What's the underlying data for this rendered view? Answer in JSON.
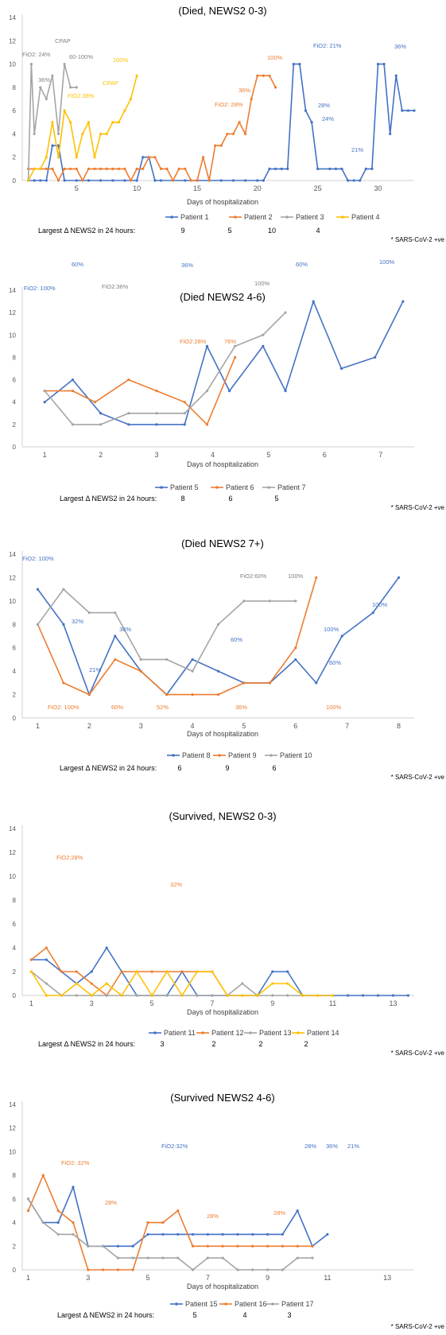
{
  "footnote": "* SARS-CoV-2 +ve",
  "delta_label": "Largest Δ NEWS2 in 24 hours:",
  "chart_data": [
    {
      "type": "line",
      "title": "(Died, NEWS2 0-3)",
      "xlabel": "Days of hospitalization",
      "xlim": [
        0.5,
        33
      ],
      "ylim": [
        0,
        14
      ],
      "yticks": [
        0,
        2,
        4,
        6,
        8,
        10,
        12,
        14
      ],
      "xticks": [
        5,
        10,
        15,
        20,
        25,
        30
      ],
      "grid": false,
      "legend_position": "bottom",
      "series": [
        {
          "name": "Patient 1",
          "color": "#4472C4",
          "delta": "9",
          "x": [
            1,
            1.5,
            2,
            2.5,
            3,
            3.5,
            4,
            5,
            6,
            7,
            8,
            9,
            10,
            10.5,
            11,
            11.5,
            12,
            13,
            14,
            15,
            16,
            17,
            18,
            19,
            20,
            20.5,
            21,
            21.5,
            22,
            22.5,
            23,
            23.5,
            24,
            24.5,
            25,
            26,
            26.5,
            27,
            27.5,
            28,
            28.5,
            29,
            29.5,
            30,
            30.5,
            31,
            31.5,
            32,
            32.5,
            33
          ],
          "y": [
            0,
            0,
            0,
            0,
            3,
            3,
            0,
            0,
            0,
            0,
            0,
            0,
            0,
            2,
            2,
            0,
            0,
            0,
            0,
            0,
            0,
            0,
            0,
            0,
            0,
            0,
            1,
            1,
            1,
            1,
            10,
            10,
            6,
            5,
            1,
            1,
            1,
            1,
            0,
            0,
            0,
            1,
            1,
            10,
            10,
            4,
            9,
            6,
            6,
            6
          ]
        },
        {
          "name": "Patient 2",
          "color": "#ED7D31",
          "delta": "5",
          "x": [
            1,
            1.5,
            2,
            2.5,
            3,
            3.5,
            4,
            4.5,
            5,
            5.5,
            6,
            6.5,
            7,
            7.5,
            8,
            8.5,
            9,
            9.5,
            10,
            10.5,
            11,
            11.5,
            12,
            12.5,
            13,
            13.5,
            14,
            14.5,
            15,
            15.5,
            16,
            16.5,
            17,
            17.5,
            18,
            18.5,
            19,
            19.5,
            20,
            20.5,
            21,
            21.5
          ],
          "y": [
            1,
            1,
            1,
            1,
            1,
            0,
            1,
            1,
            1,
            0,
            1,
            1,
            1,
            1,
            1,
            1,
            1,
            0,
            1,
            1,
            2,
            2,
            1,
            1,
            0,
            1,
            1,
            0,
            0,
            2,
            0,
            3,
            3,
            4,
            4,
            5,
            4,
            7,
            9,
            9,
            9,
            8
          ]
        },
        {
          "name": "Patient 3",
          "color": "#A5A5A5",
          "delta": "10",
          "x": [
            1,
            1.25,
            1.5,
            2,
            2.5,
            3,
            3.5,
            4,
            4.5,
            5
          ],
          "y": [
            0,
            10,
            4,
            8,
            7,
            9,
            4,
            10,
            8,
            8
          ]
        },
        {
          "name": "Patient 4",
          "color": "#FFC000",
          "delta": "4",
          "x": [
            1,
            1.5,
            2,
            2.5,
            3,
            3.5,
            4,
            4.5,
            5,
            5.5,
            6,
            6.5,
            7,
            7.5,
            8,
            8.5,
            9,
            9.5,
            10
          ],
          "y": [
            0,
            1,
            1,
            2,
            5,
            2,
            6,
            5,
            2,
            4,
            5,
            2,
            4,
            4,
            5,
            5,
            6,
            7,
            9
          ]
        }
      ],
      "annotations": [
        {
          "text": "FiO2: 24%",
          "color": "#808080"
        },
        {
          "text": "36%",
          "color": "#808080"
        },
        {
          "text": "CPAP",
          "color": "#808080"
        },
        {
          "text": "60-100%",
          "color": "#808080"
        },
        {
          "text": "100%",
          "color": "#FFC000"
        },
        {
          "text": "CPAP",
          "color": "#FFC000"
        },
        {
          "text": "FiO2:36%",
          "color": "#FFC000"
        },
        {
          "text": "100%",
          "color": "#ED7D31"
        },
        {
          "text": "36%",
          "color": "#ED7D31"
        },
        {
          "text": "FiO2: 28%",
          "color": "#ED7D31"
        },
        {
          "text": "FiO2: 21%",
          "color": "#4472C4"
        },
        {
          "text": "28%",
          "color": "#4472C4"
        },
        {
          "text": "24%",
          "color": "#4472C4"
        },
        {
          "text": "21%",
          "color": "#4472C4"
        },
        {
          "text": "36%",
          "color": "#4472C4"
        }
      ]
    },
    {
      "type": "line",
      "title": "(Died NEWS2 4-6)",
      "xlabel": "Days of hospitalization",
      "xlim": [
        0.6,
        7.6
      ],
      "ylim": [
        0,
        14
      ],
      "yticks": [
        0,
        2,
        4,
        6,
        8,
        10,
        12,
        14
      ],
      "xticks": [
        1,
        2,
        3,
        4,
        5,
        6,
        7
      ],
      "grid": false,
      "legend_position": "bottom",
      "series": [
        {
          "name": "Patient 5",
          "color": "#4472C4",
          "delta": "8",
          "x": [
            1,
            1.5,
            2,
            2.5,
            3,
            3.5,
            3.9,
            4.3,
            4.9,
            5.3,
            5.8,
            6.3,
            6.9,
            7.4
          ],
          "y": [
            4,
            6,
            3,
            2,
            2,
            2,
            9,
            5,
            9,
            5,
            13,
            7,
            8,
            13
          ]
        },
        {
          "name": "Patient 6",
          "color": "#ED7D31",
          "delta": "6",
          "x": [
            1,
            1.5,
            1.9,
            2.5,
            3,
            3.5,
            3.9,
            4.4
          ],
          "y": [
            5,
            5,
            4,
            6,
            5,
            4,
            2,
            8
          ]
        },
        {
          "name": "Patient 7",
          "color": "#A5A5A5",
          "delta": "5",
          "x": [
            1,
            1.5,
            2,
            2.5,
            3,
            3.5,
            3.9,
            4.4,
            4.9,
            5.3
          ],
          "y": [
            5,
            2,
            2,
            3,
            3,
            3,
            5,
            9,
            10,
            12
          ]
        }
      ],
      "annotations": [
        {
          "text": "FiO2: 100%",
          "color": "#4472C4"
        },
        {
          "text": "60%",
          "color": "#4472C4"
        },
        {
          "text": "36%",
          "color": "#4472C4"
        },
        {
          "text": "60%",
          "color": "#4472C4"
        },
        {
          "text": "100%",
          "color": "#4472C4"
        },
        {
          "text": "FiO2:36%",
          "color": "#808080"
        },
        {
          "text": "100%",
          "color": "#808080"
        },
        {
          "text": "FiO2:28%",
          "color": "#ED7D31"
        },
        {
          "text": "76%",
          "color": "#ED7D31"
        }
      ]
    },
    {
      "type": "line",
      "title": "(Died NEWS2 7+)",
      "xlabel": "Days of hospitalization",
      "xlim": [
        0.7,
        8.3
      ],
      "ylim": [
        0,
        14
      ],
      "yticks": [
        0,
        2,
        4,
        6,
        8,
        10,
        12,
        14
      ],
      "xticks": [
        1,
        2,
        3,
        4,
        5,
        6,
        7,
        8
      ],
      "grid": false,
      "legend_position": "bottom",
      "series": [
        {
          "name": "Patient 8",
          "color": "#4472C4",
          "delta": "6",
          "x": [
            1,
            1.5,
            2,
            2.5,
            3,
            3.5,
            4,
            4.5,
            5,
            5.5,
            6,
            6.4,
            6.9,
            7.5,
            8
          ],
          "y": [
            11,
            8,
            2,
            7,
            4,
            2,
            5,
            4,
            3,
            3,
            5,
            3,
            7,
            9,
            12
          ]
        },
        {
          "name": "Patient 9",
          "color": "#ED7D31",
          "delta": "9",
          "x": [
            1,
            1.5,
            2,
            2.5,
            3,
            3.5,
            4,
            4.5,
            5,
            5.5,
            6,
            6.4
          ],
          "y": [
            8,
            3,
            2,
            5,
            4,
            2,
            2,
            2,
            3,
            3,
            6,
            12
          ]
        },
        {
          "name": "Patient 10",
          "color": "#A5A5A5",
          "delta": "6",
          "x": [
            1,
            1.5,
            2,
            2.5,
            3,
            3.5,
            4,
            4.5,
            5,
            5.5,
            6
          ],
          "y": [
            8,
            11,
            9,
            9,
            5,
            5,
            4,
            8,
            10,
            10,
            10
          ]
        }
      ],
      "annotations": [
        {
          "text": "FiO2: 100%",
          "color": "#4472C4"
        },
        {
          "text": "32%",
          "color": "#4472C4"
        },
        {
          "text": "21%",
          "color": "#4472C4"
        },
        {
          "text": "36%",
          "color": "#4472C4"
        },
        {
          "text": "60%",
          "color": "#4472C4"
        },
        {
          "text": "100%",
          "color": "#4472C4"
        },
        {
          "text": "60%",
          "color": "#4472C4"
        },
        {
          "text": "100%",
          "color": "#4472C4"
        },
        {
          "text": "FiO2:60%",
          "color": "#808080"
        },
        {
          "text": "100%",
          "color": "#808080"
        },
        {
          "text": "FiO2: 100%",
          "color": "#ED7D31"
        },
        {
          "text": "60%",
          "color": "#ED7D31"
        },
        {
          "text": "52%",
          "color": "#ED7D31"
        },
        {
          "text": "36%",
          "color": "#ED7D31"
        },
        {
          "text": "100%",
          "color": "#ED7D31"
        }
      ]
    },
    {
      "type": "line",
      "title": "(Survived, NEWS2 0-3)",
      "xlabel": "Days of hospitalization",
      "xlim": [
        0.7,
        13.7
      ],
      "ylim": [
        0,
        14
      ],
      "yticks": [
        0,
        2,
        4,
        6,
        8,
        10,
        12,
        14
      ],
      "xticks": [
        1,
        3,
        5,
        7,
        9,
        11,
        13
      ],
      "grid": false,
      "legend_position": "bottom",
      "series": [
        {
          "name": "Patient 11",
          "color": "#4472C4",
          "delta": "3",
          "x": [
            1,
            1.5,
            2,
            2.5,
            3,
            3.5,
            4,
            4.5,
            5,
            5.5,
            6,
            6.5,
            7,
            7.5,
            8,
            8.5,
            9,
            9.5,
            10,
            10.5,
            11,
            11.5,
            12,
            12.5,
            13,
            13.5
          ],
          "y": [
            3,
            3,
            2,
            1,
            2,
            4,
            2,
            0,
            0,
            0,
            2,
            0,
            0,
            0,
            0,
            0,
            2,
            2,
            0,
            0,
            0,
            0,
            0,
            0,
            0,
            0
          ]
        },
        {
          "name": "Patient 12",
          "color": "#ED7D31",
          "delta": "2",
          "x": [
            1,
            1.5,
            2,
            2.5,
            3,
            3.5,
            4,
            4.5,
            5,
            5.5,
            6,
            6.5,
            7,
            7.5
          ],
          "y": [
            3,
            4,
            2,
            2,
            1,
            0,
            2,
            2,
            2,
            2,
            2,
            2,
            2,
            0
          ]
        },
        {
          "name": "Patient 13",
          "color": "#A5A5A5",
          "delta": "2",
          "x": [
            1,
            1.5,
            2,
            2.5,
            3,
            3.5,
            4,
            4.5,
            5,
            5.5,
            6,
            6.5,
            7,
            7.5,
            8,
            8.5,
            9,
            9.5,
            10
          ],
          "y": [
            2,
            1,
            0,
            0,
            0,
            0,
            0,
            0,
            0,
            0,
            0,
            0,
            0,
            0,
            1,
            0,
            0,
            0,
            0
          ]
        },
        {
          "name": "Patient 14",
          "color": "#FFC000",
          "delta": "2",
          "x": [
            1,
            1.5,
            2,
            2.5,
            3,
            3.5,
            4,
            4.5,
            5,
            5.5,
            6,
            6.5,
            7,
            7.5,
            8,
            8.5,
            9,
            9.5,
            10,
            10.5,
            11
          ],
          "y": [
            2,
            0,
            0,
            1,
            0,
            1,
            0,
            2,
            0,
            2,
            0,
            2,
            2,
            0,
            0,
            0,
            1,
            1,
            0,
            0,
            0
          ]
        }
      ],
      "annotations": [
        {
          "text": "FiO2:28%",
          "color": "#ED7D31"
        },
        {
          "text": "32%",
          "color": "#ED7D31"
        }
      ]
    },
    {
      "type": "line",
      "title": "(Survived NEWS2 4-6)",
      "xlabel": "Days of hospitalization",
      "xlim": [
        0.8,
        13.9
      ],
      "ylim": [
        0,
        14
      ],
      "yticks": [
        0,
        2,
        4,
        6,
        8,
        10,
        12,
        14
      ],
      "xticks": [
        1,
        3,
        5,
        7,
        9,
        11,
        13
      ],
      "grid": false,
      "legend_position": "bottom",
      "series": [
        {
          "name": "Patient 15",
          "color": "#4472C4",
          "delta": "5",
          "x": [
            1,
            1.5,
            2,
            2.5,
            3,
            3.5,
            4,
            4.5,
            5,
            5.5,
            6,
            6.5,
            7,
            7.5,
            8,
            8.5,
            9,
            9.5,
            10,
            10.5,
            11
          ],
          "y": [
            6,
            4,
            4,
            7,
            2,
            2,
            2,
            2,
            3,
            3,
            3,
            3,
            3,
            3,
            3,
            3,
            3,
            3,
            5,
            2,
            3
          ]
        },
        {
          "name": "Patient 16",
          "color": "#ED7D31",
          "delta": "4",
          "x": [
            1,
            1.5,
            2,
            2.5,
            3,
            3.5,
            4,
            4.5,
            5,
            5.5,
            6,
            6.5,
            7,
            7.5,
            8,
            8.5,
            9,
            9.5,
            10,
            10.5
          ],
          "y": [
            5,
            8,
            5,
            4,
            0,
            0,
            0,
            0,
            4,
            4,
            5,
            2,
            2,
            2,
            2,
            2,
            2,
            2,
            2,
            2
          ]
        },
        {
          "name": "Patient 17",
          "color": "#A5A5A5",
          "delta": "3",
          "x": [
            1,
            1.5,
            2,
            2.5,
            3,
            3.5,
            4,
            4.5,
            5,
            5.5,
            6,
            6.5,
            7,
            7.5,
            8,
            8.5,
            9,
            9.5,
            10,
            10.5
          ],
          "y": [
            6,
            4,
            3,
            3,
            2,
            2,
            1,
            1,
            1,
            1,
            1,
            0,
            1,
            1,
            0,
            0,
            0,
            0,
            1,
            1
          ]
        }
      ],
      "annotations": [
        {
          "text": "FiO2:32%",
          "color": "#4472C4"
        },
        {
          "text": "28%",
          "color": "#4472C4"
        },
        {
          "text": "36%",
          "color": "#4472C4"
        },
        {
          "text": "21%",
          "color": "#4472C4"
        },
        {
          "text": "FiO2: 32%",
          "color": "#ED7D31"
        },
        {
          "text": "28%",
          "color": "#ED7D31"
        },
        {
          "text": "28%",
          "color": "#ED7D31"
        },
        {
          "text": "28%",
          "color": "#ED7D31"
        }
      ]
    }
  ]
}
